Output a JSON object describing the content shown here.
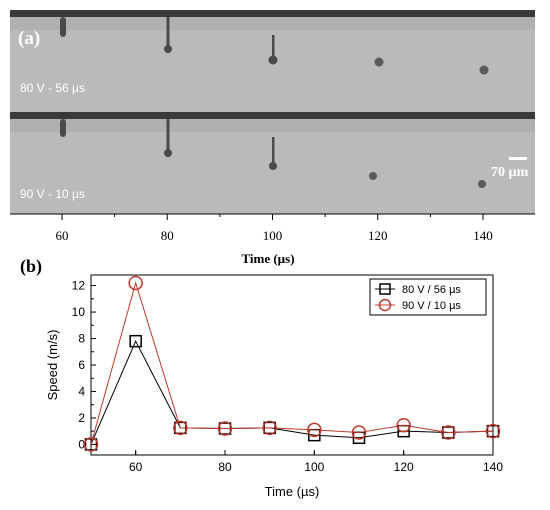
{
  "panel_a": {
    "label": "(a)",
    "row_labels": [
      "80 V - 56 µs",
      "90 V - 10 µs"
    ],
    "scale_bar_label": "70 µm",
    "xaxis_label": "Time (µs)",
    "ticks": [
      60,
      80,
      100,
      120,
      140
    ],
    "frame_bg": "#b0b0b0",
    "drop_color": "#4a4a4a"
  },
  "panel_b": {
    "label": "(b)"
  },
  "chart_data": [
    {
      "type": "line",
      "title": "",
      "xlabel": "Time (µs)",
      "ylabel": "Speed (m/s)",
      "xlim": [
        50,
        140
      ],
      "ylim": [
        -0.8,
        12.8
      ],
      "xticks": [
        60,
        80,
        100,
        120,
        140
      ],
      "yticks": [
        0,
        2,
        4,
        6,
        8,
        10,
        12
      ],
      "legend_position": "top-right",
      "grid": false,
      "x": [
        50,
        60,
        70,
        80,
        90,
        100,
        110,
        120,
        130,
        140
      ],
      "series": [
        {
          "name": "80 V / 56 µs",
          "marker": "square",
          "color": "#000000",
          "values": [
            0.0,
            7.8,
            1.25,
            1.2,
            1.25,
            0.7,
            0.5,
            1.0,
            0.9,
            1.0
          ]
        },
        {
          "name": "90 V / 10 µs",
          "marker": "circle",
          "color": "#c0392b",
          "values": [
            0.0,
            12.2,
            1.25,
            1.2,
            1.25,
            1.1,
            0.9,
            1.45,
            0.9,
            1.0
          ]
        }
      ]
    }
  ]
}
